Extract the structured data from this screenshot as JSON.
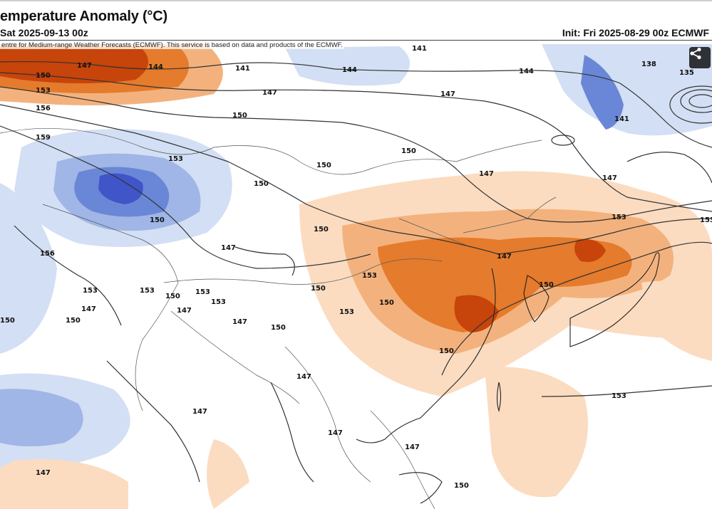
{
  "header": {
    "title": "emperature Anomaly (°C)",
    "valid": "Sat 2025-09-13 00z",
    "init": "Init: Fri 2025-08-29 00z ECMWF"
  },
  "map": {
    "credit": "entre for Medium-range Weather Forecasts (ECMWF). This service is based on data and products of the ECMWF.",
    "share_icon": "share-icon",
    "colors": {
      "warm_strong": "#c7440a",
      "warm": "#e57b2c",
      "warm_light": "#f3b27d",
      "warm_pale": "#fbdcc1",
      "cool_strong": "#3f55c8",
      "cool": "#6a86d6",
      "cool_light": "#9fb6e6",
      "cool_pale": "#d3dff4",
      "contour": "#333333",
      "border": "#555555"
    },
    "contour_labels": [
      "147",
      "144",
      "141",
      "141",
      "144",
      "144",
      "138",
      "135",
      "150",
      "153",
      "156",
      "159",
      "147",
      "147",
      "150",
      "153",
      "150",
      "150",
      "141",
      "150",
      "147",
      "147",
      "153",
      "150",
      "156",
      "147",
      "150",
      "153",
      "147",
      "153",
      "150",
      "153",
      "150",
      "150",
      "153",
      "150",
      "153",
      "147",
      "153",
      "150",
      "150",
      "153",
      "147",
      "147",
      "147",
      "147",
      "147",
      "150",
      "153",
      "150",
      "147",
      "147",
      "150"
    ]
  }
}
